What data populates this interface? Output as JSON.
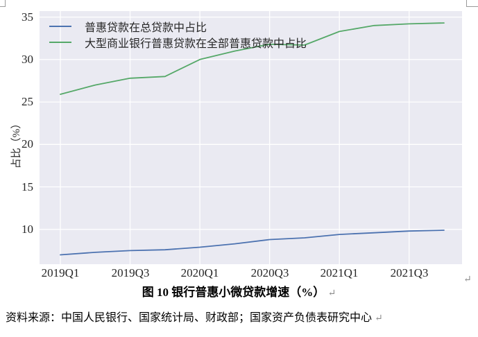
{
  "figure": {
    "ylabel": "占比（%）",
    "paragraph_mark": "↵"
  },
  "caption": {
    "text": "图 10 银行普惠小微贷款增速（%）"
  },
  "source": {
    "text": "资料来源：中国人民银行、国家统计局、财政部；国家资产负债表研究中心"
  },
  "colors": {
    "series_blue": "#4C72B0",
    "series_green": "#55A868",
    "plot_background": "#EAEAF2",
    "gridline": "#FFFFFF",
    "text": "#262626",
    "paragraph_mark": "#8C8C8C",
    "corner_mark": "#999999"
  },
  "chart_data": {
    "type": "line",
    "title": "图 10 银行普惠小微贷款增速（%）",
    "xlabel": "",
    "ylabel": "占比（%）",
    "grid": true,
    "legend_position": "upper left",
    "categories": [
      "2019Q1",
      "2019Q2",
      "2019Q3",
      "2019Q4",
      "2020Q1",
      "2020Q2",
      "2020Q3",
      "2020Q4",
      "2021Q1",
      "2021Q2",
      "2021Q3",
      "2021Q4"
    ],
    "xtick_labels": [
      "2019Q1",
      "2019Q3",
      "2020Q1",
      "2020Q3",
      "2021Q1",
      "2021Q3"
    ],
    "yticks": [
      10,
      15,
      20,
      25,
      30,
      35
    ],
    "ylim": [
      5.9,
      35.7
    ],
    "series": [
      {
        "name": "普惠贷款在总贷款中占比",
        "color": "#4C72B0",
        "values": [
          7.0,
          7.3,
          7.5,
          7.6,
          7.9,
          8.3,
          8.8,
          9.0,
          9.4,
          9.6,
          9.8,
          9.9
        ]
      },
      {
        "name": "大型商业银行普惠贷款在全部普惠贷款中占比",
        "color": "#55A868",
        "values": [
          25.9,
          27.0,
          27.8,
          28.0,
          30.0,
          31.0,
          31.8,
          31.7,
          33.3,
          34.0,
          34.2,
          34.3
        ]
      }
    ]
  }
}
